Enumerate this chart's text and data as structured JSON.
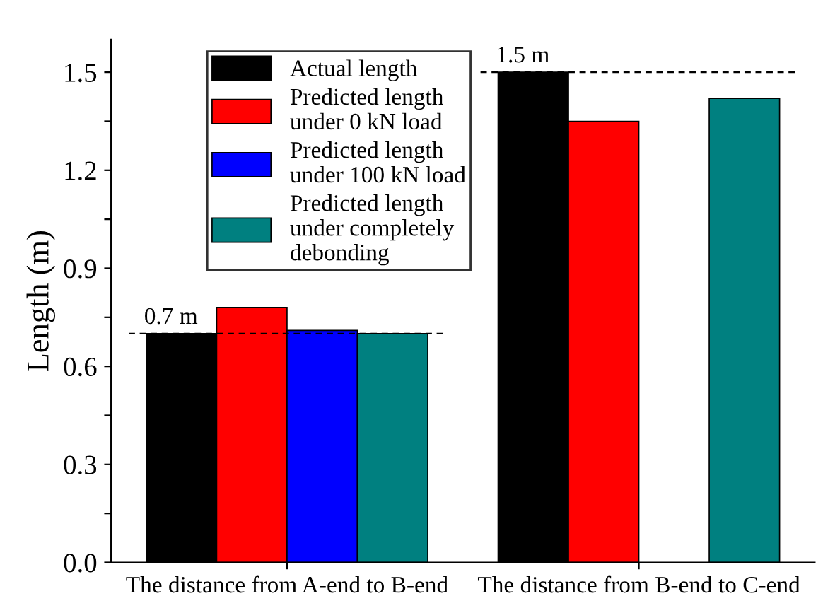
{
  "chart_data": {
    "type": "bar",
    "ylabel": "Length (m)",
    "categories": [
      "The distance from A-end to B-end",
      "The distance from B-end to C-end"
    ],
    "series": [
      {
        "name": "Actual length",
        "color": "#000000",
        "values": [
          0.7,
          1.5
        ]
      },
      {
        "name": "Predicted length\nunder 0 kN load",
        "color": "#ff0000",
        "values": [
          0.78,
          1.35
        ]
      },
      {
        "name": "Predicted length\nunder 100 kN load",
        "color": "#0000ff",
        "values": [
          0.71,
          null
        ]
      },
      {
        "name": "Predicted length\nunder completely\ndebonding",
        "color": "#008080",
        "values": [
          0.7,
          1.42
        ]
      }
    ],
    "ylim": [
      0,
      1.6
    ],
    "yticks": [
      {
        "value": 0,
        "label": "0.0"
      },
      {
        "value": 0.15,
        "label": null
      },
      0.3,
      {
        "value": 0.45,
        "label": null
      },
      0.6,
      {
        "value": 0.75,
        "label": null
      },
      0.9,
      {
        "value": 1.05,
        "label": null
      },
      1.2,
      {
        "value": 1.35,
        "label": null
      },
      1.5
    ],
    "ref_lines": [
      {
        "axis": "y",
        "value": 0.7,
        "label": "0.7 m",
        "line_style": "dashed"
      },
      {
        "axis": "y",
        "value": 1.5,
        "label": "1.5 m",
        "line_style": "dashed"
      }
    ],
    "legend": "top left",
    "grid": false
  }
}
